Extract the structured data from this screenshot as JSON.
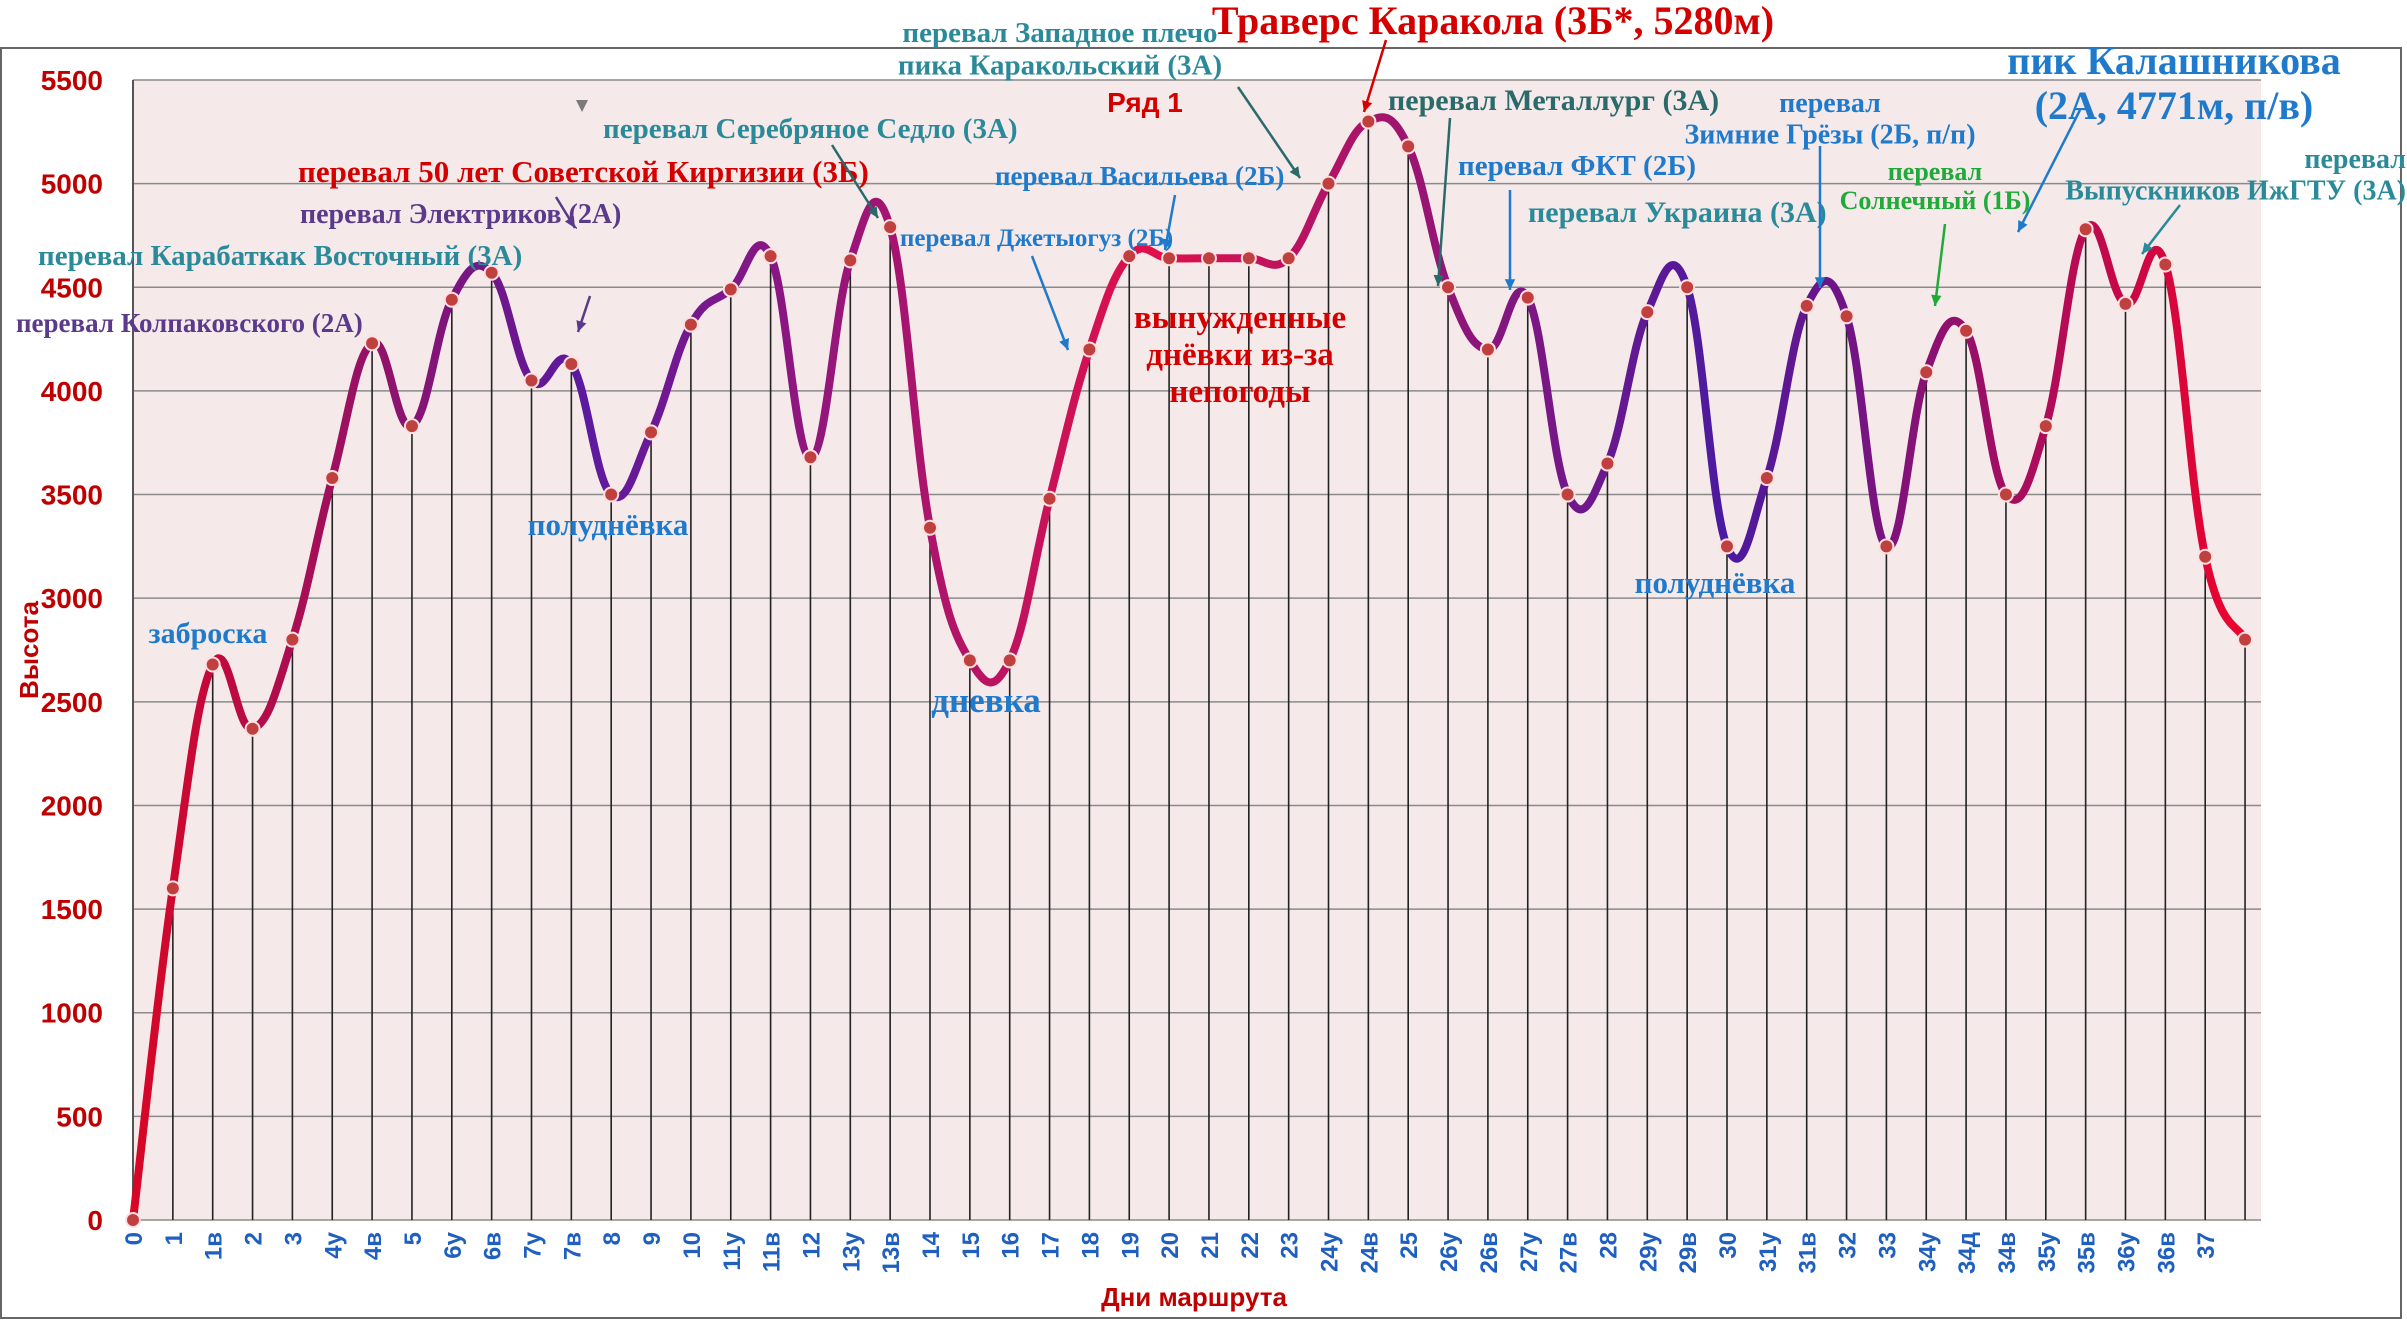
{
  "chart_data": {
    "type": "line",
    "title": "",
    "xlabel": "Дни маршрута",
    "ylabel": "Высота",
    "ylim": [
      0,
      5500
    ],
    "yticks": [
      0,
      500,
      1000,
      1500,
      2000,
      2500,
      3000,
      3500,
      4000,
      4500,
      5000,
      5500
    ],
    "grid": {
      "horizontal": true,
      "vertical_drop_lines": true
    },
    "legend_label": "Ряд 1",
    "background": "#f5e9e9",
    "colors": {
      "line_start": "#ff0000",
      "line_end": "#3a1a9a",
      "marker": "#c04040",
      "axis_text": "#c00000",
      "day_text": "#1f5fbf"
    },
    "series": [
      {
        "categories": [
          "0",
          "1",
          "1в",
          "2",
          "3",
          "4у",
          "4в",
          "5",
          "6у",
          "6в",
          "7у",
          "7в",
          "8",
          "9",
          "10",
          "11у",
          "11в",
          "12",
          "13у",
          "13в",
          "14",
          "15",
          "16",
          "17",
          "18",
          "19",
          "20",
          "21",
          "22",
          "23",
          "24у",
          "24в",
          "25",
          "26у",
          "26в",
          "27у",
          "27в",
          "28",
          "29у",
          "29в",
          "30",
          "31у",
          "31в",
          "32",
          "33",
          "34у",
          "34д",
          "34в",
          "35у",
          "35в",
          "36у",
          "36в",
          "37",
          ""
        ],
        "values": [
          0,
          1600,
          2680,
          2370,
          2800,
          3580,
          4230,
          3830,
          4440,
          4570,
          4050,
          4130,
          3500,
          3800,
          4320,
          4490,
          4650,
          3680,
          4630,
          4790,
          3340,
          2700,
          2700,
          3480,
          4200,
          4650,
          4640,
          4640,
          4640,
          4640,
          5000,
          5300,
          5180,
          4500,
          4200,
          4450,
          3500,
          3650,
          4380,
          4500,
          3250,
          3580,
          4410,
          4360,
          3250,
          4090,
          4290,
          3500,
          3830,
          4780,
          4420,
          4610,
          3200,
          2800
        ]
      }
    ],
    "annotations": [
      {
        "text": "заброска",
        "color": "#1f7acc"
      },
      {
        "text": "перевал Колпаковского (2А)",
        "color": "#5a3a8a"
      },
      {
        "text": "перевал Карабаткак Восточный (3А)",
        "color": "#2a8a9a"
      },
      {
        "text": "перевал Электриков (2А)",
        "color": "#5a3a8a"
      },
      {
        "text": "перевал 50 лет Советской Киргизии (3Б)",
        "color": "#d40000"
      },
      {
        "text": "полуднёвка",
        "color": "#1f7acc"
      },
      {
        "text": "перевал Серебряное Седло (3А)",
        "color": "#2a8a9a"
      },
      {
        "text": "дневка",
        "color": "#1f7acc"
      },
      {
        "text": "перевал Джетыогуз (2Б)",
        "color": "#1f7acc"
      },
      {
        "text": "перевал Васильева (2Б)",
        "color": "#1f7acc"
      },
      {
        "text": "вынужденные днёвки из-за непогоды",
        "color": "#d40000"
      },
      {
        "text": "перевал Западное плечо пика Каракольский (3А)",
        "color": "#2a8a9a"
      },
      {
        "text": "Ряд 1",
        "color": "#d40000"
      },
      {
        "text": "Траверс Каракола (3Б*, 5280м)",
        "color": "#d40000"
      },
      {
        "text": "перевал Металлург (3А)",
        "color": "#2a6a6a"
      },
      {
        "text": "перевал ФКТ (2Б)",
        "color": "#1f7acc"
      },
      {
        "text": "перевал Украина (3А)",
        "color": "#2a8a9a"
      },
      {
        "text": "полуднёвка",
        "color": "#1f7acc"
      },
      {
        "text": "перевал Зимние Грёзы (2Б, п/п)",
        "color": "#1f7acc"
      },
      {
        "text": "перевал Солнечный (1Б)",
        "color": "#1faa3a"
      },
      {
        "text": "пик Калашникова (2А, 4771м, п/в)",
        "color": "#1f7acc"
      },
      {
        "text": "перевал Выпускников ИжГТУ (3А)",
        "color": "#2a8a9a"
      }
    ]
  }
}
